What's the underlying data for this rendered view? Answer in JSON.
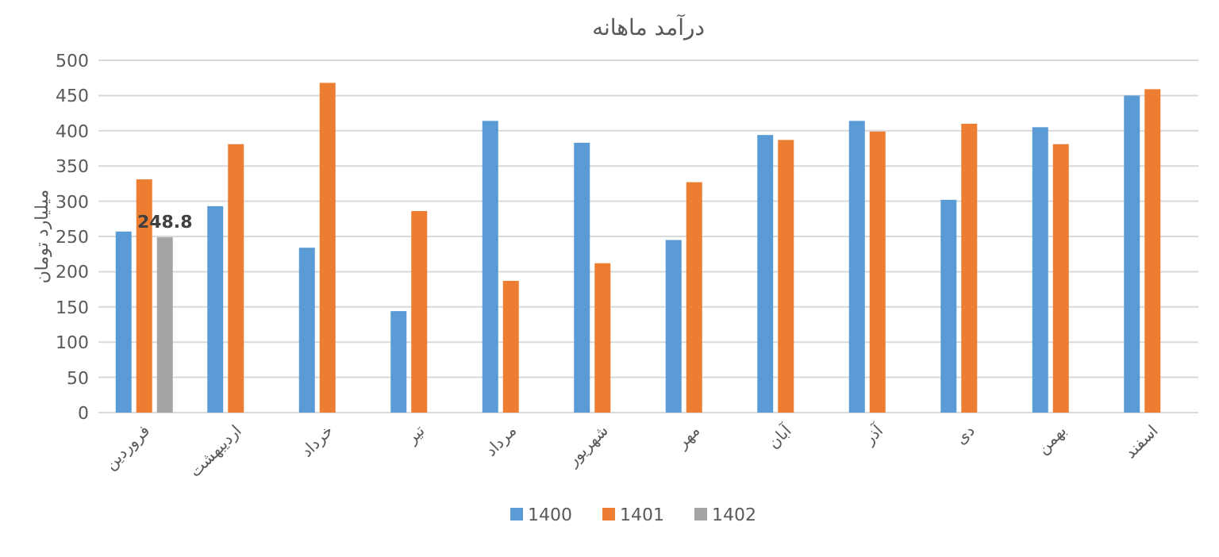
{
  "chart_data": {
    "type": "bar",
    "title": "درآمد ماهانه",
    "ylabel": "میلیارد تومان",
    "categories": [
      "فروردین",
      "اردیبهشت",
      "خرداد",
      "تیر",
      "مرداد",
      "شهریور",
      "مهر",
      "آبان",
      "آذر",
      "دی",
      "بهمن",
      "اسفند"
    ],
    "series": [
      {
        "name": "1400",
        "color": "#5b9bd5",
        "values": [
          257,
          293,
          234,
          144,
          414,
          383,
          245,
          394,
          414,
          302,
          405,
          450
        ]
      },
      {
        "name": "1401",
        "color": "#ed7d31",
        "values": [
          331,
          381,
          468,
          286,
          187,
          212,
          327,
          387,
          399,
          410,
          381,
          459
        ]
      },
      {
        "name": "1402",
        "color": "#a5a5a5",
        "values": [
          248.8,
          null,
          null,
          null,
          null,
          null,
          null,
          null,
          null,
          null,
          null,
          null
        ],
        "value_labels": [
          "248.8",
          null,
          null,
          null,
          null,
          null,
          null,
          null,
          null,
          null,
          null,
          null
        ]
      }
    ],
    "ylim": [
      0,
      500
    ],
    "yticks": [
      0,
      50,
      100,
      150,
      200,
      250,
      300,
      350,
      400,
      450,
      500
    ],
    "grid": "y",
    "legend": "bottom"
  }
}
